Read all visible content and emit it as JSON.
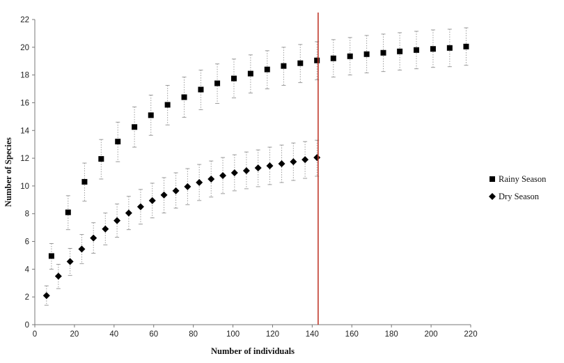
{
  "chart_data": {
    "type": "scatter",
    "xlabel": "Number of individuals",
    "ylabel": "Number of Species",
    "xlim": [
      0,
      220
    ],
    "ylim": [
      0,
      22
    ],
    "x_ticks": [
      0,
      20,
      40,
      60,
      80,
      100,
      120,
      140,
      160,
      180,
      200,
      220
    ],
    "y_ticks": [
      0,
      2,
      4,
      6,
      8,
      10,
      12,
      14,
      16,
      18,
      20,
      22
    ],
    "grid": false,
    "legend_position": "right",
    "reference_line": {
      "x": 143,
      "color": "#c0392b"
    },
    "series": [
      {
        "name": "Rainy Season",
        "marker": "square",
        "color": "#000000",
        "points": [
          {
            "x": 8.4,
            "y": 4.95,
            "lo": 4.0,
            "hi": 5.85
          },
          {
            "x": 16.8,
            "y": 8.1,
            "lo": 6.85,
            "hi": 9.3
          },
          {
            "x": 25.1,
            "y": 10.3,
            "lo": 8.9,
            "hi": 11.65
          },
          {
            "x": 33.5,
            "y": 11.95,
            "lo": 10.5,
            "hi": 13.35
          },
          {
            "x": 41.9,
            "y": 13.2,
            "lo": 11.75,
            "hi": 14.6
          },
          {
            "x": 50.3,
            "y": 14.25,
            "lo": 12.8,
            "hi": 15.7
          },
          {
            "x": 58.6,
            "y": 15.1,
            "lo": 13.65,
            "hi": 16.55
          },
          {
            "x": 67.0,
            "y": 15.85,
            "lo": 14.4,
            "hi": 17.25
          },
          {
            "x": 75.4,
            "y": 16.4,
            "lo": 14.95,
            "hi": 17.85
          },
          {
            "x": 83.8,
            "y": 16.95,
            "lo": 15.5,
            "hi": 18.35
          },
          {
            "x": 92.1,
            "y": 17.4,
            "lo": 15.95,
            "hi": 18.8
          },
          {
            "x": 100.5,
            "y": 17.75,
            "lo": 16.35,
            "hi": 19.15
          },
          {
            "x": 108.9,
            "y": 18.1,
            "lo": 16.7,
            "hi": 19.45
          },
          {
            "x": 117.3,
            "y": 18.4,
            "lo": 17.0,
            "hi": 19.75
          },
          {
            "x": 125.6,
            "y": 18.65,
            "lo": 17.25,
            "hi": 20.0
          },
          {
            "x": 134.0,
            "y": 18.85,
            "lo": 17.45,
            "hi": 20.2
          },
          {
            "x": 142.4,
            "y": 19.05,
            "lo": 17.65,
            "hi": 20.4
          },
          {
            "x": 150.7,
            "y": 19.2,
            "lo": 17.85,
            "hi": 20.55
          },
          {
            "x": 159.1,
            "y": 19.35,
            "lo": 18.0,
            "hi": 20.7
          },
          {
            "x": 167.5,
            "y": 19.5,
            "lo": 18.15,
            "hi": 20.85
          },
          {
            "x": 175.9,
            "y": 19.6,
            "lo": 18.25,
            "hi": 20.95
          },
          {
            "x": 184.2,
            "y": 19.7,
            "lo": 18.35,
            "hi": 21.05
          },
          {
            "x": 192.6,
            "y": 19.8,
            "lo": 18.45,
            "hi": 21.15
          },
          {
            "x": 201.0,
            "y": 19.88,
            "lo": 18.55,
            "hi": 21.25
          },
          {
            "x": 209.4,
            "y": 19.95,
            "lo": 18.6,
            "hi": 21.3
          },
          {
            "x": 217.7,
            "y": 20.05,
            "lo": 18.7,
            "hi": 21.4
          }
        ]
      },
      {
        "name": "Dry Season",
        "marker": "diamond",
        "color": "#000000",
        "points": [
          {
            "x": 5.9,
            "y": 2.1,
            "lo": 1.4,
            "hi": 2.8
          },
          {
            "x": 11.9,
            "y": 3.5,
            "lo": 2.6,
            "hi": 4.35
          },
          {
            "x": 17.8,
            "y": 4.55,
            "lo": 3.55,
            "hi": 5.5
          },
          {
            "x": 23.7,
            "y": 5.45,
            "lo": 4.4,
            "hi": 6.5
          },
          {
            "x": 29.6,
            "y": 6.25,
            "lo": 5.15,
            "hi": 7.35
          },
          {
            "x": 35.6,
            "y": 6.9,
            "lo": 5.75,
            "hi": 8.05
          },
          {
            "x": 41.5,
            "y": 7.5,
            "lo": 6.3,
            "hi": 8.7
          },
          {
            "x": 47.4,
            "y": 8.05,
            "lo": 6.85,
            "hi": 9.25
          },
          {
            "x": 53.4,
            "y": 8.5,
            "lo": 7.25,
            "hi": 9.75
          },
          {
            "x": 59.3,
            "y": 8.95,
            "lo": 7.7,
            "hi": 10.2
          },
          {
            "x": 65.2,
            "y": 9.35,
            "lo": 8.05,
            "hi": 10.6
          },
          {
            "x": 71.2,
            "y": 9.65,
            "lo": 8.4,
            "hi": 10.95
          },
          {
            "x": 77.1,
            "y": 9.95,
            "lo": 8.65,
            "hi": 11.25
          },
          {
            "x": 83.0,
            "y": 10.25,
            "lo": 8.95,
            "hi": 11.55
          },
          {
            "x": 89.0,
            "y": 10.5,
            "lo": 9.2,
            "hi": 11.8
          },
          {
            "x": 94.9,
            "y": 10.75,
            "lo": 9.45,
            "hi": 12.05
          },
          {
            "x": 100.8,
            "y": 10.95,
            "lo": 9.65,
            "hi": 12.25
          },
          {
            "x": 106.8,
            "y": 11.1,
            "lo": 9.8,
            "hi": 12.45
          },
          {
            "x": 112.7,
            "y": 11.3,
            "lo": 9.95,
            "hi": 12.6
          },
          {
            "x": 118.6,
            "y": 11.45,
            "lo": 10.1,
            "hi": 12.8
          },
          {
            "x": 124.6,
            "y": 11.6,
            "lo": 10.25,
            "hi": 12.95
          },
          {
            "x": 130.5,
            "y": 11.75,
            "lo": 10.4,
            "hi": 13.1
          },
          {
            "x": 136.4,
            "y": 11.9,
            "lo": 10.55,
            "hi": 13.2
          },
          {
            "x": 142.4,
            "y": 12.05,
            "lo": 10.7,
            "hi": 13.3
          }
        ]
      }
    ]
  }
}
